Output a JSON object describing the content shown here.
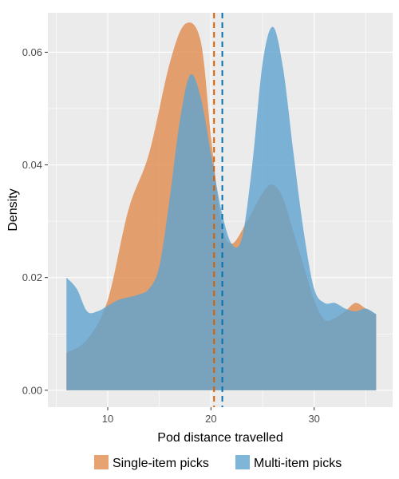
{
  "chart_data": {
    "type": "area",
    "xlabel": "Pod distance travelled",
    "ylabel": "Density",
    "xlim": [
      4.2,
      37.6
    ],
    "ylim": [
      -0.003,
      0.067
    ],
    "x_ticks": [
      10,
      20,
      30
    ],
    "y_ticks": [
      0.0,
      0.02,
      0.04,
      0.06
    ],
    "y_tick_labels": [
      "0.00",
      "0.02",
      "0.04",
      "0.06"
    ],
    "background": "#ebebeb",
    "grid": true,
    "legend_position": "bottom",
    "series": [
      {
        "name": "Single-item picks",
        "color": "#e08b4e",
        "mean": 20.3,
        "points": [
          [
            6,
            0.0066
          ],
          [
            8,
            0.009
          ],
          [
            10,
            0.016
          ],
          [
            12,
            0.032
          ],
          [
            14,
            0.042
          ],
          [
            16,
            0.058
          ],
          [
            17.5,
            0.065
          ],
          [
            19,
            0.062
          ],
          [
            20,
            0.045
          ],
          [
            21,
            0.03
          ],
          [
            22,
            0.026
          ],
          [
            23.5,
            0.03
          ],
          [
            25,
            0.035
          ],
          [
            26,
            0.0365
          ],
          [
            27,
            0.034
          ],
          [
            28,
            0.028
          ],
          [
            29,
            0.022
          ],
          [
            30,
            0.016
          ],
          [
            31,
            0.0125
          ],
          [
            32,
            0.0128
          ],
          [
            33,
            0.014
          ],
          [
            34,
            0.0155
          ],
          [
            35,
            0.0145
          ],
          [
            36,
            0.0135
          ]
        ]
      },
      {
        "name": "Multi-item picks",
        "color": "#5fa3cf",
        "mean": 21.1,
        "points": [
          [
            6,
            0.02
          ],
          [
            7,
            0.018
          ],
          [
            8,
            0.014
          ],
          [
            9,
            0.014
          ],
          [
            10,
            0.015
          ],
          [
            11,
            0.016
          ],
          [
            12,
            0.0165
          ],
          [
            13,
            0.017
          ],
          [
            14,
            0.018
          ],
          [
            15,
            0.022
          ],
          [
            16,
            0.034
          ],
          [
            17,
            0.048
          ],
          [
            18,
            0.056
          ],
          [
            19,
            0.052
          ],
          [
            20,
            0.042
          ],
          [
            21,
            0.032
          ],
          [
            22,
            0.026
          ],
          [
            23,
            0.027
          ],
          [
            24,
            0.04
          ],
          [
            25,
            0.058
          ],
          [
            26,
            0.0645
          ],
          [
            27,
            0.057
          ],
          [
            28,
            0.042
          ],
          [
            29,
            0.028
          ],
          [
            30,
            0.018
          ],
          [
            31,
            0.0155
          ],
          [
            32,
            0.0155
          ],
          [
            33,
            0.0145
          ],
          [
            34,
            0.014
          ],
          [
            35,
            0.0145
          ],
          [
            36,
            0.0135
          ]
        ]
      }
    ]
  }
}
